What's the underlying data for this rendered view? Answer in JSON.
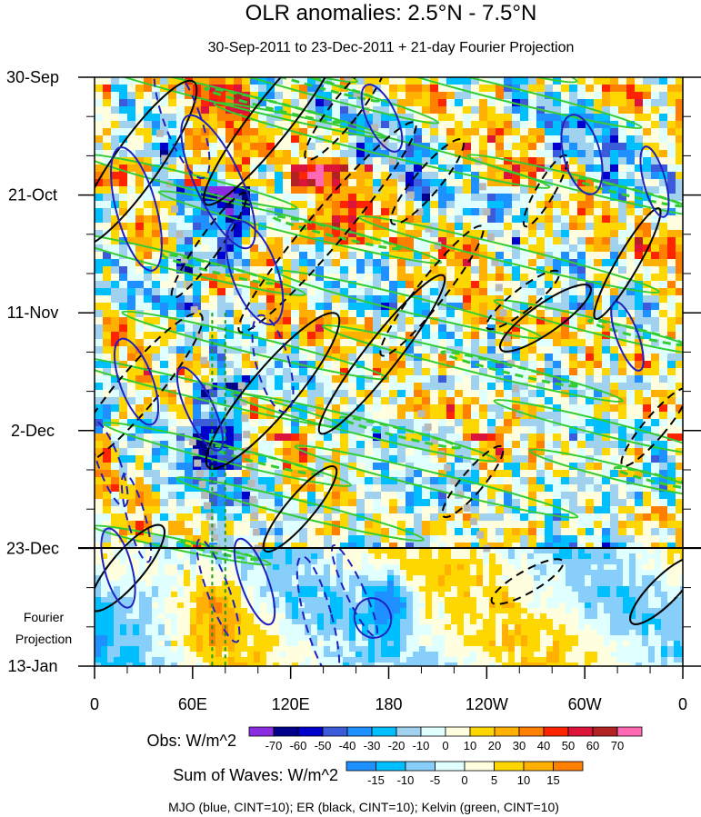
{
  "chart_data": {
    "type": "heatmap",
    "title": "OLR anomalies: 2.5°N - 7.5°N",
    "subtitle": "30-Sep-2011 to 23-Dec-2011 + 21-day Fourier Projection",
    "x_axis": {
      "ticks": [
        "0",
        "60E",
        "120E",
        "180",
        "120W",
        "60W",
        "0"
      ],
      "tick_values": [
        0,
        60,
        120,
        180,
        240,
        300,
        360
      ],
      "range": [
        0,
        360
      ]
    },
    "y_axis": {
      "ticks": [
        "30-Sep",
        "21-Oct",
        "11-Nov",
        "2-Dec",
        "23-Dec",
        "13-Jan"
      ],
      "tick_days": [
        0,
        21,
        42,
        63,
        84,
        105
      ],
      "range_days": [
        0,
        105
      ],
      "reversed": true
    },
    "projection_label": [
      "Fourier",
      "Projection"
    ],
    "obs_colorbar": {
      "label": "Obs: W/m^2",
      "levels": [
        "-70",
        "-60",
        "-50",
        "-40",
        "-30",
        "-20",
        "-10",
        "0",
        "10",
        "20",
        "30",
        "40",
        "50",
        "60",
        "70"
      ],
      "colors": [
        "#8a2be2",
        "#00008b",
        "#0000cd",
        "#3b5bdb",
        "#1e90ff",
        "#00bfff",
        "#a0d2f0",
        "#e0ffff",
        "#ffffe0",
        "#ffd700",
        "#ffb000",
        "#ff7f00",
        "#ff2400",
        "#dc143c",
        "#b22222",
        "#ff69b4"
      ]
    },
    "wave_colorbar": {
      "label": "Sum of Waves: W/m^2",
      "levels": [
        "-15",
        "-10",
        "-5",
        "0",
        "5",
        "10",
        "15"
      ],
      "colors": [
        "#1e90ff",
        "#00bfff",
        "#87cefa",
        "#e0ffff",
        "#ffffe0",
        "#ffd700",
        "#ffb000",
        "#ff7f00"
      ]
    },
    "footnote": "MJO (blue, CINT=10); ER (black, CINT=10); Kelvin (green, CINT=10)",
    "contours": {
      "mjo": {
        "color": "#2020c0",
        "center_lon": 75,
        "center_day": 10
      },
      "er": {
        "color": "#000000"
      },
      "kelvin": {
        "color": "#33cc33"
      },
      "reference_line_lon": [
        72,
        80
      ]
    },
    "grid": false
  }
}
